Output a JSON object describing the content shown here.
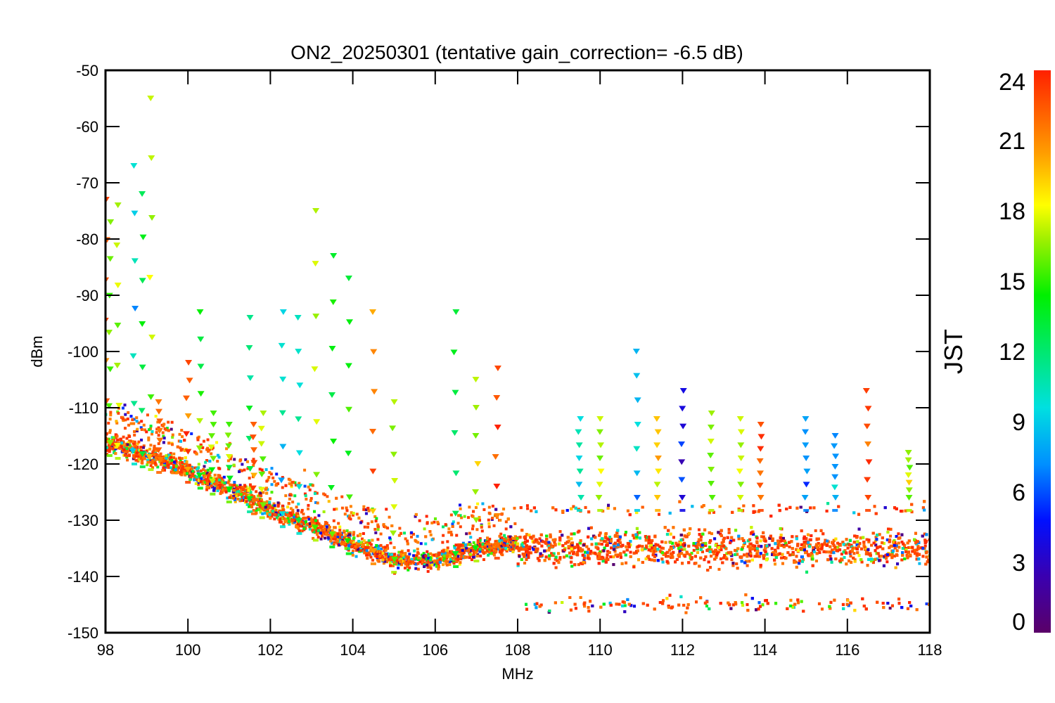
{
  "chart_data": {
    "type": "scatter",
    "title": "ON2_20250301 (tentative gain_correction= -6.5 dB)",
    "xlabel": "MHz",
    "ylabel": "dBm",
    "xlim": [
      98,
      118
    ],
    "ylim": [
      -150,
      -50
    ],
    "xticks": [
      98,
      100,
      102,
      104,
      106,
      108,
      110,
      112,
      114,
      116,
      118
    ],
    "yticks": [
      -50,
      -60,
      -70,
      -80,
      -90,
      -100,
      -110,
      -120,
      -130,
      -140,
      -150
    ],
    "grid": false,
    "colorbar": {
      "label": "JST",
      "range": [
        0,
        24
      ],
      "ticks": [
        0,
        3,
        6,
        9,
        12,
        15,
        18,
        21,
        24
      ],
      "colormap": "rainbow (purple-blue-cyan-green-yellow-orange-red)"
    },
    "noise_floor": {
      "description": "Dense band of points at the receiver noise floor, colour = JST hour",
      "below_108_MHz": [
        [
          98,
          -116
        ],
        [
          100,
          -121
        ],
        [
          102,
          -128
        ],
        [
          104,
          -134
        ],
        [
          105,
          -137
        ],
        [
          106,
          -137
        ],
        [
          107,
          -135
        ],
        [
          108,
          -134
        ]
      ],
      "above_108_MHz": {
        "center": -135,
        "upper": -128,
        "lower": -145
      }
    },
    "peak_signals": [
      {
        "freq": 98.0,
        "max_dbm": -73,
        "color_jst": 23
      },
      {
        "freq": 98.1,
        "max_dbm": -77,
        "color_jst": 16
      },
      {
        "freq": 98.3,
        "max_dbm": -74,
        "color_jst": 17
      },
      {
        "freq": 98.7,
        "max_dbm": -67,
        "color_jst": 10
      },
      {
        "freq": 98.9,
        "max_dbm": -72,
        "color_jst": 13
      },
      {
        "freq": 99.1,
        "max_dbm": -55,
        "color_jst": 17
      },
      {
        "freq": 99.3,
        "max_dbm": -109,
        "color_jst": 22
      },
      {
        "freq": 100.0,
        "max_dbm": -102,
        "color_jst": 23
      },
      {
        "freq": 100.3,
        "max_dbm": -93,
        "color_jst": 14
      },
      {
        "freq": 100.6,
        "max_dbm": -111,
        "color_jst": 16
      },
      {
        "freq": 101.0,
        "max_dbm": -113,
        "color_jst": 16
      },
      {
        "freq": 101.5,
        "max_dbm": -94,
        "color_jst": 11
      },
      {
        "freq": 101.6,
        "max_dbm": -113,
        "color_jst": 22
      },
      {
        "freq": 101.8,
        "max_dbm": -111,
        "color_jst": 17
      },
      {
        "freq": 102.3,
        "max_dbm": -93,
        "color_jst": 10
      },
      {
        "freq": 102.7,
        "max_dbm": -94,
        "color_jst": 10
      },
      {
        "freq": 103.1,
        "max_dbm": -75,
        "color_jst": 17
      },
      {
        "freq": 103.5,
        "max_dbm": -83,
        "color_jst": 14
      },
      {
        "freq": 103.9,
        "max_dbm": -87,
        "color_jst": 14
      },
      {
        "freq": 104.5,
        "max_dbm": -93,
        "color_jst": 21
      },
      {
        "freq": 105.0,
        "max_dbm": -109,
        "color_jst": 17
      },
      {
        "freq": 106.5,
        "max_dbm": -93,
        "color_jst": 14
      },
      {
        "freq": 107.0,
        "max_dbm": -105,
        "color_jst": 17
      },
      {
        "freq": 107.5,
        "max_dbm": -103,
        "color_jst": 23
      },
      {
        "freq": 109.5,
        "max_dbm": -112,
        "color_jst": 10
      },
      {
        "freq": 110.0,
        "max_dbm": -112,
        "color_jst": 17
      },
      {
        "freq": 110.9,
        "max_dbm": -100,
        "color_jst": 9
      },
      {
        "freq": 111.4,
        "max_dbm": -112,
        "color_jst": 20
      },
      {
        "freq": 112.0,
        "max_dbm": -107,
        "color_jst": 4
      },
      {
        "freq": 112.7,
        "max_dbm": -111,
        "color_jst": 17
      },
      {
        "freq": 113.4,
        "max_dbm": -112,
        "color_jst": 17
      },
      {
        "freq": 113.9,
        "max_dbm": -113,
        "color_jst": 23
      },
      {
        "freq": 115.0,
        "max_dbm": -112,
        "color_jst": 7
      },
      {
        "freq": 115.7,
        "max_dbm": -115,
        "color_jst": 7
      },
      {
        "freq": 116.5,
        "max_dbm": -107,
        "color_jst": 23
      },
      {
        "freq": 117.5,
        "max_dbm": -118,
        "color_jst": 17
      }
    ]
  }
}
